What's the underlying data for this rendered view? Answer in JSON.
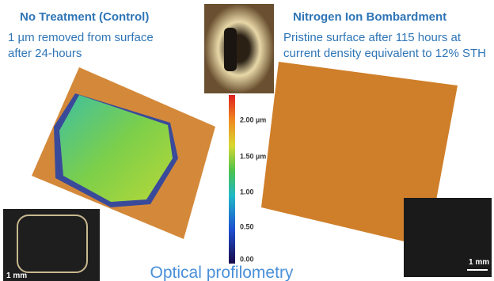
{
  "left": {
    "title": "No Treatment (Control)",
    "lines": [
      "1 µm removed from surface",
      "after 24-hours"
    ],
    "scale_label": "1 mm"
  },
  "right": {
    "title": "Nitrogen Ion Bombardment",
    "lines": [
      "Pristine surface after 115 hours at",
      "current density equivalent to 12% STH"
    ],
    "scale_label": "1 mm"
  },
  "colorbar": {
    "labels": [
      "2.00 µm",
      "1.50 µm",
      "1.00",
      "0.50",
      "0.00"
    ]
  },
  "caption": "Optical profilometry"
}
